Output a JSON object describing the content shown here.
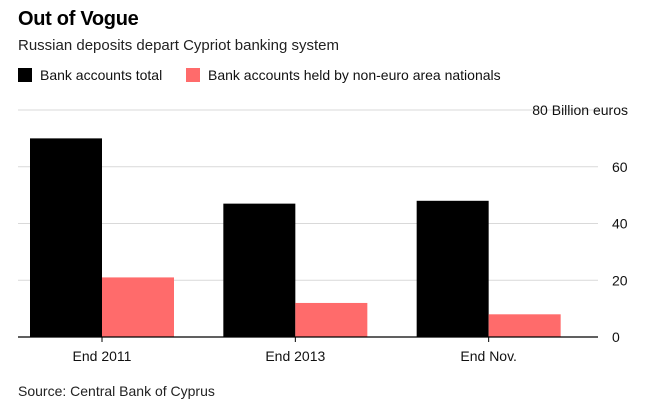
{
  "header": {
    "title": "Out of Vogue",
    "subtitle": "Russian deposits depart Cypriot banking system"
  },
  "footer": {
    "source": "Source: Central Bank of Cyprus"
  },
  "chart_data": {
    "type": "bar",
    "title": "Out of Vogue",
    "subtitle": "Russian deposits depart Cypriot banking system",
    "categories": [
      "End 2011",
      "End 2013",
      "End Nov."
    ],
    "series": [
      {
        "name": "Bank accounts total",
        "color": "#000000",
        "values": [
          70,
          47,
          48
        ]
      },
      {
        "name": "Bank accounts held by non-euro area nationals",
        "color": "#ff6b6b",
        "values": [
          21,
          12,
          8
        ]
      }
    ],
    "ylabel": "",
    "y_unit_label": "80 Billion euros",
    "ylim": [
      0,
      80
    ],
    "yticks": [
      0,
      20,
      40,
      60,
      80
    ],
    "ytick_labels": [
      "0",
      "20",
      "40",
      "60",
      "80 Billion euros"
    ],
    "y_axis_side": "right",
    "grid": true,
    "legend_position": "top-left"
  }
}
